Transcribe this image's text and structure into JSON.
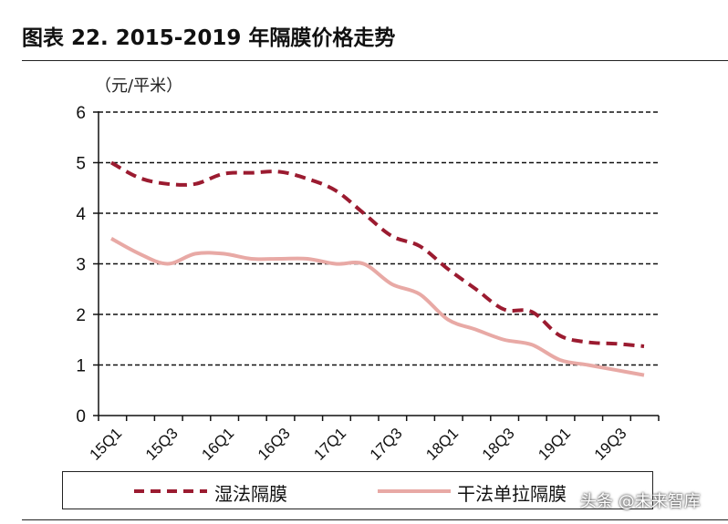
{
  "chart_data": {
    "type": "line",
    "title": "图表 22. 2015-2019 年隔膜价格走势",
    "ylabel": "（元/平米）",
    "xlabel": "",
    "ylim": [
      0,
      6
    ],
    "yticks": [
      0,
      1,
      2,
      3,
      4,
      5,
      6
    ],
    "x": [
      "15Q1",
      "15Q2",
      "15Q3",
      "15Q4",
      "16Q1",
      "16Q2",
      "16Q3",
      "16Q4",
      "17Q1",
      "17Q2",
      "17Q3",
      "17Q4",
      "18Q1",
      "18Q2",
      "18Q3",
      "18Q4",
      "19Q1",
      "19Q2",
      "19Q3",
      "19Q4"
    ],
    "xtick_labels": [
      "15Q1",
      "15Q3",
      "16Q1",
      "16Q3",
      "17Q1",
      "17Q3",
      "18Q1",
      "18Q3",
      "19Q1",
      "19Q3"
    ],
    "grid": true,
    "legend_position": "bottom",
    "series": [
      {
        "name": "湿法隔膜",
        "style": "dashed",
        "color": "#9b1b30",
        "values": [
          5.0,
          4.7,
          4.58,
          4.58,
          4.78,
          4.8,
          4.82,
          4.68,
          4.45,
          4.0,
          3.55,
          3.35,
          2.9,
          2.5,
          2.1,
          2.05,
          1.58,
          1.45,
          1.42,
          1.37
        ]
      },
      {
        "name": "干法单拉隔膜",
        "style": "solid",
        "color": "#e8a9a5",
        "values": [
          3.5,
          3.2,
          3.0,
          3.2,
          3.2,
          3.1,
          3.1,
          3.1,
          3.0,
          3.0,
          2.6,
          2.4,
          1.9,
          1.7,
          1.5,
          1.4,
          1.1,
          1.0,
          0.9,
          0.8
        ]
      }
    ]
  },
  "watermark": "头条 @未来智库"
}
